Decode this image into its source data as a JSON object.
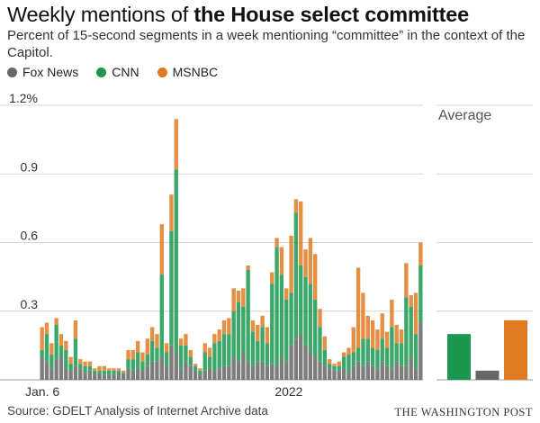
{
  "header": {
    "title_plain": "Weekly mentions of ",
    "title_bold": "the House select committee",
    "subtitle": "Percent of 15-second segments in a week mentioning “committee” in the context of the Capitol."
  },
  "footer": {
    "source": "Source: GDELT Analysis of Internet Archive data",
    "credit": "THE WASHINGTON POST"
  },
  "chart_data": [
    {
      "type": "bar",
      "stacked": true,
      "x_start_label": "Jan. 6",
      "x_mid_label": "2022",
      "x_mid_index": 52,
      "y_tick_values": [
        0.3,
        0.6,
        0.9
      ],
      "y_top_label": "1.2%",
      "ylim": [
        0,
        1.2
      ],
      "grid": true,
      "legend_position": "top-left",
      "series": [
        {
          "name": "Fox News",
          "color": "#666666",
          "values": [
            0.1,
            0.08,
            0.05,
            0.09,
            0.1,
            0.05,
            0.04,
            0.06,
            0.05,
            0.03,
            0.04,
            0.02,
            0.03,
            0.02,
            0.02,
            0.02,
            0.03,
            0.02,
            0.05,
            0.04,
            0.05,
            0.04,
            0.06,
            0.08,
            0.08,
            0.1,
            0.06,
            0.15,
            0.12,
            0.05,
            0.08,
            0.06,
            0.04,
            0.02,
            0.04,
            0.05,
            0.04,
            0.05,
            0.06,
            0.06,
            0.1,
            0.08,
            0.12,
            0.08,
            0.06,
            0.08,
            0.08,
            0.06,
            0.07,
            0.06,
            0.1,
            0.08,
            0.15,
            0.18,
            0.2,
            0.15,
            0.12,
            0.1,
            0.08,
            0.06,
            0.05,
            0.04,
            0.04,
            0.05,
            0.03,
            0.06,
            0.08,
            0.06,
            0.08,
            0.06,
            0.05,
            0.08,
            0.06,
            0.05,
            0.08,
            0.06,
            0.06,
            0.1,
            0.05,
            0.25
          ]
        },
        {
          "name": "CNN",
          "color": "#1a9850",
          "values": [
            0.03,
            0.12,
            0.06,
            0.15,
            0.05,
            0.08,
            0.03,
            0.12,
            0.02,
            0.03,
            0.02,
            0.02,
            0.01,
            0.02,
            0.02,
            0.02,
            0.01,
            0.01,
            0.04,
            0.05,
            0.07,
            0.04,
            0.05,
            0.09,
            0.06,
            0.36,
            0.06,
            0.5,
            0.8,
            0.1,
            0.07,
            0.04,
            0.02,
            0.02,
            0.08,
            0.05,
            0.12,
            0.12,
            0.14,
            0.14,
            0.2,
            0.26,
            0.2,
            0.4,
            0.15,
            0.09,
            0.15,
            0.1,
            0.35,
            0.52,
            0.36,
            0.27,
            0.23,
            0.55,
            0.3,
            0.3,
            0.3,
            0.25,
            0.15,
            0.07,
            0.02,
            0.02,
            0.02,
            0.05,
            0.08,
            0.06,
            0.06,
            0.12,
            0.1,
            0.08,
            0.08,
            0.1,
            0.08,
            0.18,
            0.08,
            0.1,
            0.3,
            0.22,
            0.15,
            0.25
          ]
        },
        {
          "name": "MSNBC",
          "color": "#e07b24",
          "values": [
            0.1,
            0.05,
            0.05,
            0.03,
            0.05,
            0.04,
            0.03,
            0.08,
            0.02,
            0.02,
            0.02,
            0.01,
            0.02,
            0.02,
            0.01,
            0.01,
            0.01,
            0.01,
            0.04,
            0.04,
            0.05,
            0.04,
            0.07,
            0.06,
            0.06,
            0.22,
            0.04,
            0.16,
            0.22,
            0.03,
            0.05,
            0.03,
            0.01,
            0.01,
            0.04,
            0.04,
            0.04,
            0.05,
            0.06,
            0.07,
            0.1,
            0.05,
            0.08,
            0.02,
            0.05,
            0.07,
            0.05,
            0.07,
            0.05,
            0.04,
            0.12,
            0.05,
            0.25,
            0.06,
            0.28,
            0.12,
            0.2,
            0.2,
            0.08,
            0.06,
            0.02,
            0.01,
            0.02,
            0.02,
            0.03,
            0.11,
            0.35,
            0.2,
            0.1,
            0.12,
            0.09,
            0.11,
            0.07,
            0.12,
            0.08,
            0.06,
            0.15,
            0.05,
            0.18,
            0.1
          ]
        }
      ]
    },
    {
      "type": "bar",
      "title": "Average",
      "categories": [
        "Fox News",
        "CNN",
        "MSNBC"
      ],
      "values": [
        0.04,
        0.2,
        0.26
      ],
      "colors": [
        "#666666",
        "#1a9850",
        "#e07b24"
      ]
    }
  ]
}
